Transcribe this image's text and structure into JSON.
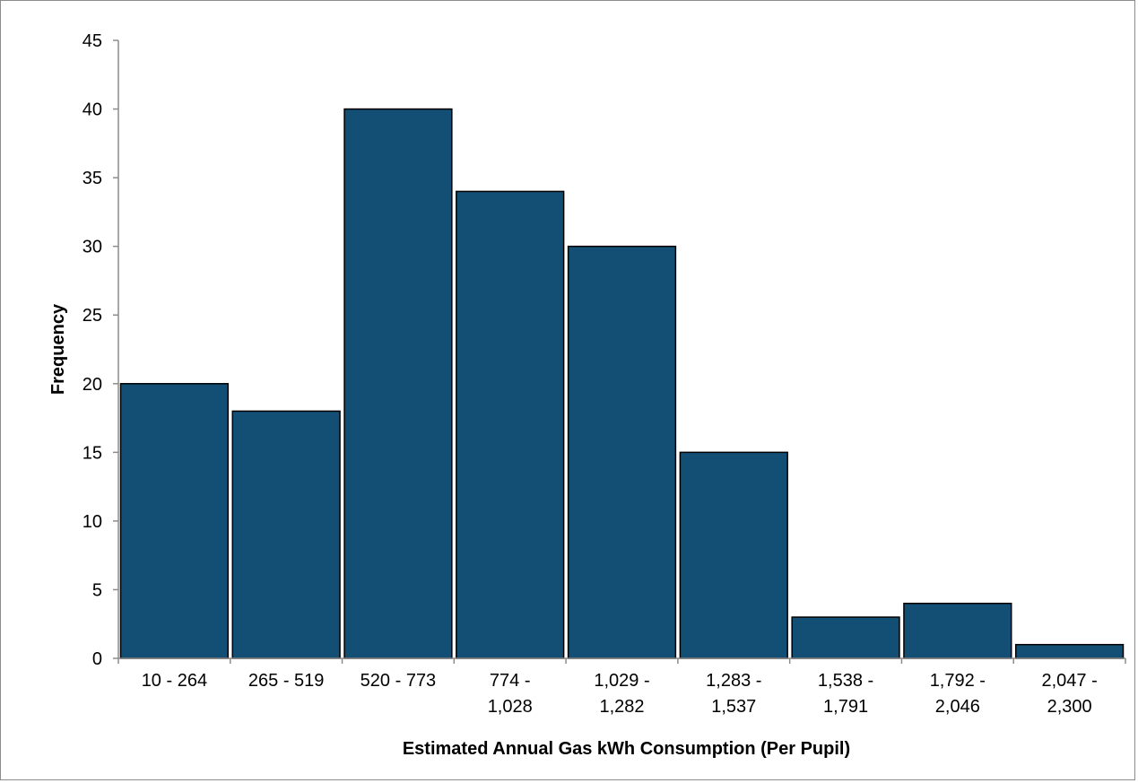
{
  "chart_data": {
    "type": "bar",
    "title": "",
    "xlabel": "Estimated Annual Gas kWh Consumption (Per Pupil)",
    "ylabel": "Frequency",
    "categories": [
      [
        "10 - 264"
      ],
      [
        "265 - 519"
      ],
      [
        "520 - 773"
      ],
      [
        "774 -",
        "1,028"
      ],
      [
        "1,029 -",
        "1,282"
      ],
      [
        "1,283 -",
        "1,537"
      ],
      [
        "1,538 -",
        "1,791"
      ],
      [
        "1,792 -",
        "2,046"
      ],
      [
        "2,047 -",
        "2,300"
      ]
    ],
    "values": [
      20,
      18,
      40,
      34,
      30,
      15,
      3,
      4,
      1
    ],
    "ylim": [
      0,
      45
    ],
    "yticks": [
      0,
      5,
      10,
      15,
      20,
      25,
      30,
      35,
      40,
      45
    ],
    "grid": false,
    "legend": "none",
    "bar_color": "#134F75",
    "bar_edge_color": "#000000"
  }
}
